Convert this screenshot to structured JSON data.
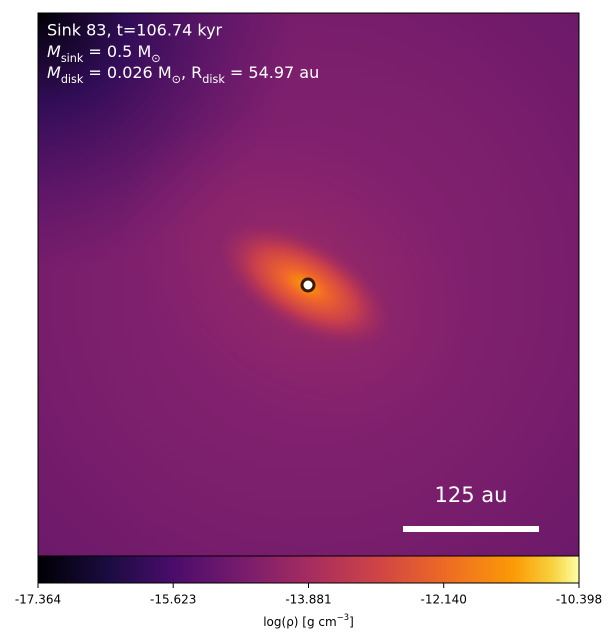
{
  "chart_data": {
    "type": "image",
    "annotations": [
      [
        "Sink 83, t=106.74 kyr"
      ],
      [
        "M",
        "sink",
        " = 0.5 M",
        "⊙"
      ],
      [
        "M",
        "disk",
        " = 0.026 M",
        "⊙",
        ", R",
        "disk",
        " = 54.97 au"
      ]
    ],
    "scale_bar": "125 au",
    "colorbar": {
      "label": [
        "log(ρ) [g cm",
        "−3",
        "]"
      ],
      "lim": [
        -17.364,
        -10.398
      ],
      "ticks": [
        -17.364,
        -15.623,
        -13.881,
        {
          "value": -12.14,
          "label": "-12.140"
        },
        -10.398
      ]
    }
  }
}
